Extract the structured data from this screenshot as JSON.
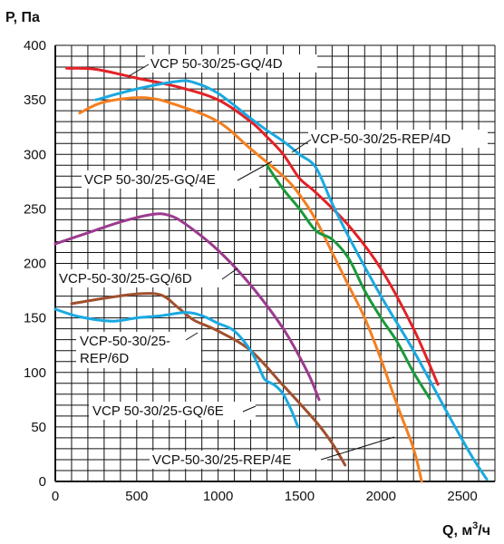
{
  "chart_data": {
    "type": "line",
    "ylabel": "P, Па",
    "xlabel_main": "Q, м",
    "xlabel_sup": "3",
    "xlabel_tail": "/ч",
    "xlim": [
      0,
      2700
    ],
    "ylim": [
      0,
      400
    ],
    "x_ticks": [
      0,
      500,
      1000,
      1500,
      2000,
      2500
    ],
    "y_ticks": [
      0,
      50,
      100,
      150,
      200,
      250,
      300,
      350,
      400
    ],
    "grid": true,
    "series": [
      {
        "name": "VCP 50-30/25-GQ/4D",
        "color": "#e32227",
        "x": [
          70,
          250,
          500,
          750,
          1000,
          1200,
          1300,
          1400,
          1500,
          1600,
          1800,
          2000,
          2200,
          2350
        ],
        "y": [
          379,
          378,
          370,
          362,
          350,
          330,
          316,
          300,
          278,
          265,
          235,
          195,
          140,
          89
        ]
      },
      {
        "name": "VCP-50-30/25-REP/4D",
        "color": "#1aa9e1",
        "x": [
          250,
          500,
          750,
          850,
          1000,
          1200,
          1300,
          1400,
          1500,
          1600,
          1700,
          1800,
          2000,
          2200,
          2400,
          2550,
          2650
        ],
        "y": [
          350,
          360,
          367,
          366,
          356,
          333,
          322,
          312,
          300,
          288,
          255,
          225,
          170,
          120,
          65,
          25,
          2
        ]
      },
      {
        "name": "VCP 50-30/25-GQ/4E",
        "color": "#f47f20",
        "x": [
          150,
          300,
          550,
          750,
          1000,
          1200,
          1400,
          1500,
          1600,
          1700,
          1800,
          1900,
          2000,
          2100,
          2200,
          2250
        ],
        "y": [
          338,
          348,
          352,
          345,
          330,
          305,
          280,
          263,
          240,
          210,
          180,
          150,
          112,
          70,
          30,
          0
        ]
      },
      {
        "name": "",
        "color": "#1a9a3a",
        "x": [
          1300,
          1400,
          1500,
          1600,
          1700,
          1800,
          1900,
          2000,
          2100,
          2200,
          2300
        ],
        "y": [
          290,
          268,
          250,
          230,
          222,
          205,
          175,
          150,
          128,
          100,
          76
        ]
      },
      {
        "name": "VCP-50-30/25-GQ/6D",
        "color": "#9c3a8e",
        "x": [
          0,
          200,
          400,
          600,
          700,
          800,
          1000,
          1200,
          1400,
          1550,
          1620
        ],
        "y": [
          218,
          228,
          238,
          245,
          244,
          236,
          212,
          180,
          140,
          100,
          75
        ]
      },
      {
        "name": "VCP-50-30/25-REP/6D",
        "color": "#a0502e",
        "x": [
          100,
          300,
          500,
          650,
          750,
          850,
          1000,
          1200,
          1400,
          1600,
          1700,
          1780
        ],
        "y": [
          163,
          168,
          172,
          171,
          160,
          148,
          138,
          120,
          88,
          55,
          35,
          15
        ]
      },
      {
        "name": "VCP 50-30/25-GQ/6E",
        "color": "#1aa9e1",
        "x": [
          0,
          150,
          350,
          500,
          650,
          800,
          900,
          1000,
          1100,
          1200,
          1250,
          1280,
          1300,
          1350,
          1400,
          1450,
          1490
        ],
        "y": [
          158,
          151,
          147,
          150,
          152,
          155,
          152,
          145,
          138,
          120,
          105,
          95,
          92,
          88,
          80,
          65,
          50
        ]
      }
    ],
    "annotations": [
      "VCP 50-30/25-GQ/4D",
      "VCP-50-30/25-REP/4D",
      "VCP 50-30/25-GQ/4E",
      "VCP-50-30/25-GQ/6D",
      "VCP-50-30/25-",
      "REP/6D",
      "VCP 50-30/25-GQ/6E",
      "VCP-50-30/25-REP/4E"
    ]
  }
}
